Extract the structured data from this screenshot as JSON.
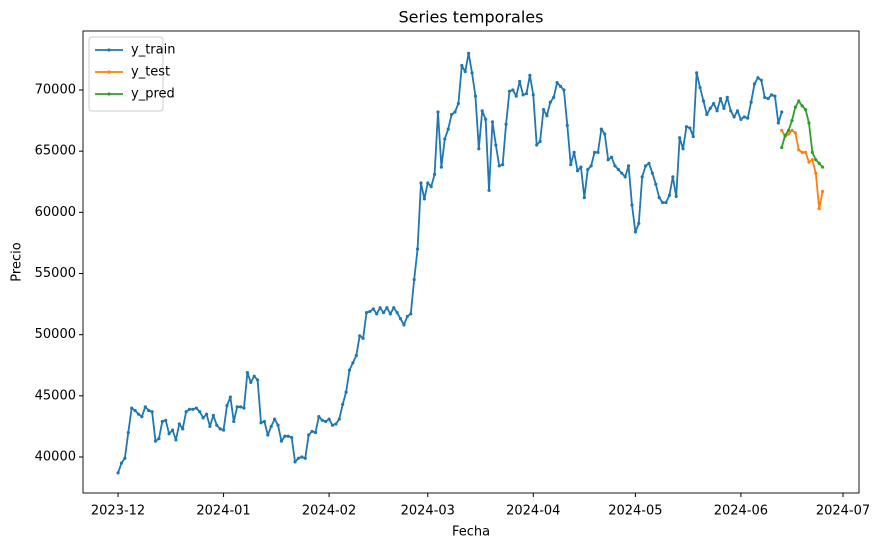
{
  "chart_data": {
    "type": "line",
    "title": "Series temporales",
    "x_label": "Fecha",
    "y_label": "Precio",
    "xlim": [
      -10.3,
      217.7
    ],
    "ylim": [
      37057,
      74823
    ],
    "xticks": [
      {
        "value": 0,
        "label": "2023-12"
      },
      {
        "value": 31,
        "label": "2024-01"
      },
      {
        "value": 62,
        "label": "2024-02"
      },
      {
        "value": 91,
        "label": "2024-03"
      },
      {
        "value": 122,
        "label": "2024-04"
      },
      {
        "value": 152,
        "label": "2024-05"
      },
      {
        "value": 183,
        "label": "2024-06"
      },
      {
        "value": 213,
        "label": "2024-07"
      }
    ],
    "yticks": [
      40000,
      45000,
      50000,
      55000,
      60000,
      65000,
      70000
    ],
    "grid": false,
    "legend": "upper left",
    "series": [
      {
        "name": "y_train",
        "color": "#1f77b4",
        "x": [
          0,
          1,
          2,
          3,
          4,
          5,
          6,
          7,
          8,
          9,
          10,
          11,
          12,
          13,
          14,
          15,
          16,
          17,
          18,
          19,
          20,
          21,
          22,
          23,
          24,
          25,
          26,
          27,
          28,
          29,
          30,
          31,
          32,
          33,
          34,
          35,
          36,
          37,
          38,
          39,
          40,
          41,
          42,
          43,
          44,
          45,
          46,
          47,
          48,
          49,
          50,
          51,
          52,
          53,
          54,
          55,
          56,
          57,
          58,
          59,
          60,
          61,
          62,
          63,
          64,
          65,
          66,
          67,
          68,
          69,
          70,
          71,
          72,
          73,
          74,
          75,
          76,
          77,
          78,
          79,
          80,
          81,
          82,
          83,
          84,
          85,
          86,
          87,
          88,
          89,
          90,
          91,
          92,
          93,
          94,
          95,
          96,
          97,
          98,
          99,
          100,
          101,
          102,
          103,
          104,
          105,
          106,
          107,
          108,
          109,
          110,
          111,
          112,
          113,
          114,
          115,
          116,
          117,
          118,
          119,
          120,
          121,
          122,
          123,
          124,
          125,
          126,
          127,
          128,
          129,
          130,
          131,
          132,
          133,
          134,
          135,
          136,
          137,
          138,
          139,
          140,
          141,
          142,
          143,
          144,
          145,
          146,
          147,
          148,
          149,
          150,
          151,
          152,
          153,
          154,
          155,
          156,
          157,
          158,
          159,
          160,
          161,
          162,
          163,
          164,
          165,
          166,
          167,
          168,
          169,
          170,
          171,
          172,
          173,
          174,
          175,
          176,
          177,
          178,
          179,
          180,
          181,
          182,
          183,
          184,
          185,
          186,
          187,
          188,
          189,
          190,
          191,
          192,
          193,
          194,
          195
        ],
        "values": [
          38700,
          39500,
          39900,
          42000,
          44000,
          43800,
          43500,
          43300,
          44100,
          43800,
          43700,
          41300,
          41500,
          42900,
          43000,
          41900,
          42200,
          41400,
          42700,
          42300,
          43700,
          43900,
          43900,
          44000,
          43700,
          43200,
          43500,
          42500,
          43400,
          42600,
          42300,
          42200,
          44200,
          44900,
          42900,
          44100,
          44100,
          44000,
          46900,
          46100,
          46600,
          46300,
          42800,
          42900,
          41800,
          42500,
          43100,
          42600,
          41300,
          41700,
          41700,
          41600,
          39600,
          39900,
          40000,
          39900,
          41800,
          42100,
          42000,
          43300,
          43000,
          42900,
          43100,
          42600,
          42700,
          43100,
          44300,
          45300,
          47100,
          47700,
          48300,
          49900,
          49700,
          51800,
          51900,
          52100,
          51700,
          52200,
          51800,
          52200,
          51700,
          52200,
          51800,
          51300,
          50800,
          51500,
          51700,
          54500,
          57000,
          62400,
          61100,
          62400,
          62100,
          63100,
          68200,
          63700,
          66000,
          66800,
          68000,
          68200,
          68900,
          72000,
          71500,
          73000,
          71400,
          69500,
          65200,
          68300,
          67600,
          61800,
          67400,
          65500,
          63800,
          63900,
          67200,
          69900,
          70000,
          69500,
          70700,
          69600,
          69700,
          71200,
          69600,
          65500,
          65800,
          68400,
          67900,
          69000,
          69400,
          70600,
          70300,
          70000,
          67100,
          63900,
          64900,
          63400,
          63700,
          61200,
          63500,
          63800,
          64900,
          64900,
          66800,
          66400,
          64300,
          64500,
          63800,
          63500,
          63200,
          62900,
          63800,
          60600,
          58400,
          59100,
          62900,
          63800,
          64000,
          63200,
          62300,
          61200,
          60800,
          60800,
          61400,
          62900,
          61300,
          66100,
          65200,
          67000,
          66900,
          66200,
          71400,
          70200,
          69100,
          68000,
          68500,
          68900,
          68300,
          69300,
          68500,
          69400,
          68300,
          67800,
          68300,
          67600,
          67800,
          67700,
          69000,
          70500,
          71000,
          70800,
          69400,
          69300,
          69600,
          69500,
          67300,
          68200
        ]
      },
      {
        "name": "y_test",
        "color": "#ff7f0e",
        "x": [
          195,
          196,
          197,
          198,
          199,
          200,
          201,
          202,
          203,
          204,
          205,
          206,
          207
        ],
        "values": [
          66700,
          66200,
          66400,
          66700,
          66500,
          65100,
          64900,
          64900,
          64100,
          64300,
          63200,
          60300,
          61700
        ]
      },
      {
        "name": "y_pred",
        "color": "#2ca02c",
        "x": [
          195,
          196,
          197,
          198,
          199,
          200,
          201,
          202,
          203,
          204,
          205,
          206,
          207
        ],
        "values": [
          65300,
          66300,
          66700,
          67500,
          68600,
          69100,
          68700,
          68400,
          67300,
          64900,
          64300,
          64000,
          63700
        ]
      }
    ]
  }
}
